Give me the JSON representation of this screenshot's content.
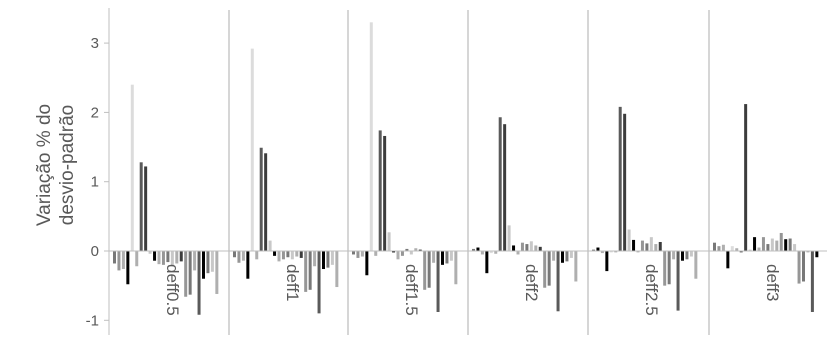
{
  "chart_data": {
    "type": "bar",
    "ylabel_lines": [
      "Variação % do",
      "desvio-padrão"
    ],
    "ylim": [
      -1,
      3.5
    ],
    "yticks": [
      -1,
      0,
      1,
      2,
      3
    ],
    "ytick_labels": [
      "-1",
      "0",
      "1",
      "2",
      "3"
    ],
    "grid": false,
    "legend": "none",
    "colors": {
      "axis": "#bfbfbf",
      "text": "#595959",
      "bar_tones": [
        "#000000",
        "#3c3c3c",
        "#5a5a5a",
        "#787878",
        "#969696",
        "#afafaf",
        "#c8c8c8",
        "#dcdcdc"
      ]
    },
    "panels": [
      {
        "label": "deff0.5",
        "bars": [
          {
            "v": -0.18,
            "t": 3
          },
          {
            "v": -0.28,
            "t": 4
          },
          {
            "v": -0.26,
            "t": 5
          },
          {
            "v": -0.48,
            "t": 0
          },
          {
            "v": 2.4,
            "t": 7
          },
          {
            "v": -0.22,
            "t": 5
          },
          {
            "v": 1.28,
            "t": 2
          },
          {
            "v": 1.22,
            "t": 1
          },
          {
            "v": -0.04,
            "t": 6
          },
          {
            "v": -0.14,
            "t": 0
          },
          {
            "v": -0.19,
            "t": 5
          },
          {
            "v": -0.2,
            "t": 4
          },
          {
            "v": -0.16,
            "t": 3
          },
          {
            "v": -0.22,
            "t": 6
          },
          {
            "v": -0.18,
            "t": 5
          },
          {
            "v": -0.15,
            "t": 1
          },
          {
            "v": -0.66,
            "t": 4
          },
          {
            "v": -0.63,
            "t": 3
          },
          {
            "v": -0.28,
            "t": 5
          },
          {
            "v": -0.92,
            "t": 2
          },
          {
            "v": -0.4,
            "t": 0
          },
          {
            "v": -0.32,
            "t": 3
          },
          {
            "v": -0.3,
            "t": 6
          },
          {
            "v": -0.62,
            "t": 5
          }
        ]
      },
      {
        "label": "deff1",
        "bars": [
          {
            "v": -0.09,
            "t": 3
          },
          {
            "v": -0.17,
            "t": 4
          },
          {
            "v": -0.14,
            "t": 5
          },
          {
            "v": -0.4,
            "t": 0
          },
          {
            "v": 2.92,
            "t": 7
          },
          {
            "v": -0.12,
            "t": 5
          },
          {
            "v": 1.49,
            "t": 2
          },
          {
            "v": 1.41,
            "t": 1
          },
          {
            "v": 0.15,
            "t": 6
          },
          {
            "v": -0.07,
            "t": 0
          },
          {
            "v": -0.15,
            "t": 5
          },
          {
            "v": -0.12,
            "t": 4
          },
          {
            "v": -0.09,
            "t": 3
          },
          {
            "v": -0.12,
            "t": 6
          },
          {
            "v": -0.08,
            "t": 5
          },
          {
            "v": -0.1,
            "t": 1
          },
          {
            "v": -0.59,
            "t": 4
          },
          {
            "v": -0.56,
            "t": 3
          },
          {
            "v": -0.22,
            "t": 5
          },
          {
            "v": -0.9,
            "t": 2
          },
          {
            "v": -0.26,
            "t": 0
          },
          {
            "v": -0.24,
            "t": 3
          },
          {
            "v": -0.2,
            "t": 6
          },
          {
            "v": -0.52,
            "t": 5
          }
        ]
      },
      {
        "label": "deff1.5",
        "bars": [
          {
            "v": -0.05,
            "t": 3
          },
          {
            "v": -0.1,
            "t": 4
          },
          {
            "v": -0.08,
            "t": 5
          },
          {
            "v": -0.35,
            "t": 0
          },
          {
            "v": 3.3,
            "t": 7
          },
          {
            "v": -0.07,
            "t": 5
          },
          {
            "v": 1.74,
            "t": 2
          },
          {
            "v": 1.66,
            "t": 1
          },
          {
            "v": 0.27,
            "t": 6
          },
          {
            "v": -0.02,
            "t": 0
          },
          {
            "v": -0.12,
            "t": 5
          },
          {
            "v": -0.07,
            "t": 4
          },
          {
            "v": 0.03,
            "t": 3
          },
          {
            "v": -0.05,
            "t": 6
          },
          {
            "v": 0.04,
            "t": 5
          },
          {
            "v": 0.02,
            "t": 1
          },
          {
            "v": -0.56,
            "t": 4
          },
          {
            "v": -0.53,
            "t": 3
          },
          {
            "v": -0.17,
            "t": 5
          },
          {
            "v": -0.88,
            "t": 2
          },
          {
            "v": -0.2,
            "t": 0
          },
          {
            "v": -0.18,
            "t": 3
          },
          {
            "v": -0.14,
            "t": 6
          },
          {
            "v": -0.48,
            "t": 5
          }
        ]
      },
      {
        "label": "deff2",
        "bars": [
          {
            "v": 0.03,
            "t": 3
          },
          {
            "v": 0.05,
            "t": 0
          },
          {
            "v": -0.05,
            "t": 5
          },
          {
            "v": -0.32,
            "t": 0
          },
          {
            "v": -0.03,
            "t": 7
          },
          {
            "v": -0.04,
            "t": 5
          },
          {
            "v": 1.93,
            "t": 2
          },
          {
            "v": 1.83,
            "t": 1
          },
          {
            "v": 0.37,
            "t": 6
          },
          {
            "v": 0.08,
            "t": 0
          },
          {
            "v": -0.05,
            "t": 5
          },
          {
            "v": 0.12,
            "t": 4
          },
          {
            "v": 0.1,
            "t": 3
          },
          {
            "v": 0.14,
            "t": 6
          },
          {
            "v": 0.08,
            "t": 5
          },
          {
            "v": 0.06,
            "t": 1
          },
          {
            "v": -0.53,
            "t": 4
          },
          {
            "v": -0.5,
            "t": 3
          },
          {
            "v": -0.14,
            "t": 5
          },
          {
            "v": -0.87,
            "t": 2
          },
          {
            "v": -0.17,
            "t": 0
          },
          {
            "v": -0.15,
            "t": 3
          },
          {
            "v": -0.1,
            "t": 6
          },
          {
            "v": -0.44,
            "t": 5
          }
        ]
      },
      {
        "label": "deff2.5",
        "bars": [
          {
            "v": 0.02,
            "t": 3
          },
          {
            "v": 0.05,
            "t": 0
          },
          {
            "v": -0.03,
            "t": 5
          },
          {
            "v": -0.29,
            "t": 0
          },
          {
            "v": -0.02,
            "t": 7
          },
          {
            "v": -0.02,
            "t": 5
          },
          {
            "v": 2.08,
            "t": 2
          },
          {
            "v": 1.98,
            "t": 1
          },
          {
            "v": 0.31,
            "t": 6
          },
          {
            "v": 0.16,
            "t": 0
          },
          {
            "v": -0.02,
            "t": 5
          },
          {
            "v": 0.15,
            "t": 4
          },
          {
            "v": 0.11,
            "t": 3
          },
          {
            "v": 0.2,
            "t": 6
          },
          {
            "v": 0.1,
            "t": 5
          },
          {
            "v": 0.13,
            "t": 1
          },
          {
            "v": -0.5,
            "t": 4
          },
          {
            "v": -0.48,
            "t": 3
          },
          {
            "v": -0.12,
            "t": 5
          },
          {
            "v": -0.86,
            "t": 2
          },
          {
            "v": -0.14,
            "t": 0
          },
          {
            "v": -0.12,
            "t": 3
          },
          {
            "v": -0.08,
            "t": 6
          },
          {
            "v": -0.4,
            "t": 5
          }
        ]
      },
      {
        "label": "deff3",
        "bars": [
          {
            "v": 0.12,
            "t": 3
          },
          {
            "v": 0.07,
            "t": 4
          },
          {
            "v": 0.09,
            "t": 5
          },
          {
            "v": -0.25,
            "t": 0
          },
          {
            "v": 0.07,
            "t": 7
          },
          {
            "v": 0.04,
            "t": 5
          },
          {
            "v": -0.02,
            "t": 2
          },
          {
            "v": 2.12,
            "t": 1
          },
          {
            "v": 0.02,
            "t": 6
          },
          {
            "v": 0.2,
            "t": 0
          },
          {
            "v": 0.05,
            "t": 5
          },
          {
            "v": 0.2,
            "t": 4
          },
          {
            "v": 0.1,
            "t": 3
          },
          {
            "v": 0.18,
            "t": 6
          },
          {
            "v": 0.15,
            "t": 5
          },
          {
            "v": 0.26,
            "t": 4
          },
          {
            "v": 0.17,
            "t": 0
          },
          {
            "v": 0.18,
            "t": 3
          },
          {
            "v": 0.1,
            "t": 6
          },
          {
            "v": -0.47,
            "t": 4
          },
          {
            "v": -0.44,
            "t": 3
          },
          {
            "v": -0.02,
            "t": 5
          },
          {
            "v": -0.88,
            "t": 2
          },
          {
            "v": -0.09,
            "t": 0
          }
        ]
      }
    ]
  }
}
